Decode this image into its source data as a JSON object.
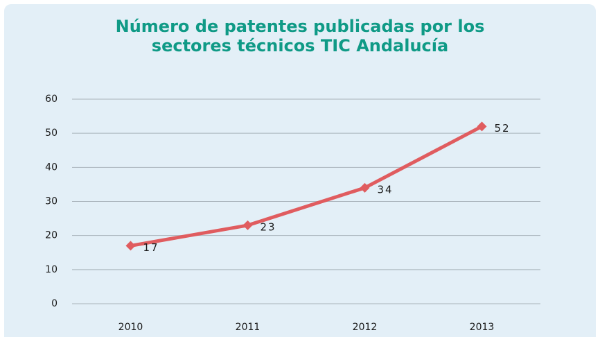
{
  "chart_data": {
    "type": "line",
    "title": "Número de patentes publicadas por los sectores técnicos TIC Andalucía",
    "categories": [
      "2010",
      "2011",
      "2012",
      "2013"
    ],
    "values": [
      17,
      23,
      34,
      52
    ],
    "color": "#e05c5f",
    "ylim": [
      0,
      60
    ],
    "yticks": [
      0,
      10,
      20,
      30,
      40,
      50,
      60
    ],
    "grid": true
  }
}
